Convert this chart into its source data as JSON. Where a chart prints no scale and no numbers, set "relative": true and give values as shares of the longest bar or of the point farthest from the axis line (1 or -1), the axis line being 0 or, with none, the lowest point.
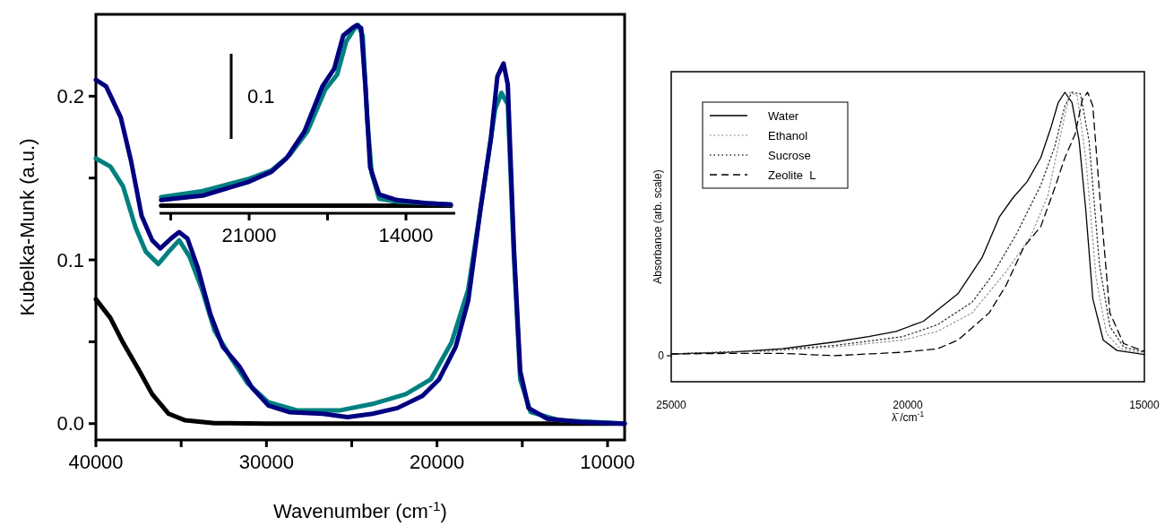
{
  "chart_data": [
    {
      "type": "line",
      "xlabel": "Wavenumber (cm$^{-1}$)",
      "ylabel": "Kubelka-Munk (a.u.)",
      "xlim": [
        40000,
        9000
      ],
      "ylim": [
        -0.01,
        0.25
      ],
      "xticks": [
        40000,
        {
          "value": 35000,
          "label": null
        },
        30000,
        {
          "value": 25000,
          "label": null
        },
        20000,
        {
          "value": 15000,
          "label": null
        },
        10000
      ],
      "yticks": [
        {
          "value": 0,
          "label": "0.0"
        },
        {
          "value": 0.05,
          "label": null
        },
        0.1,
        {
          "value": 0.15,
          "label": null
        },
        0.2
      ],
      "series": [
        {
          "color": "#000000",
          "x": [
            40000,
            39150,
            38410,
            37440,
            36700,
            35730,
            34760,
            33050,
            30000,
            20000,
            9000
          ],
          "values": [
            0.076,
            0.0645,
            0.0495,
            0.032,
            0.018,
            0.006,
            0.002,
            0.0003,
            0,
            0,
            0
          ]
        },
        {
          "color": "#008080",
          "x": [
            40000,
            39150,
            38410,
            37680,
            37070,
            36340,
            35730,
            35120,
            34510,
            33780,
            33050,
            32070,
            31100,
            29880,
            28170,
            25730,
            23780,
            21830,
            20370,
            19150,
            18170,
            17320,
            16590,
            16220,
            15850,
            15490,
            15120,
            14510,
            12800,
            9000
          ],
          "values": [
            0.162,
            0.157,
            0.145,
            0.12,
            0.105,
            0.0975,
            0.105,
            0.112,
            0.102,
            0.082,
            0.057,
            0.04,
            0.0245,
            0.013,
            0.008,
            0.008,
            0.012,
            0.018,
            0.027,
            0.0495,
            0.082,
            0.14,
            0.192,
            0.202,
            0.195,
            0.102,
            0.027,
            0.007,
            0.002,
            0
          ]
        },
        {
          "color": "#000080",
          "x": [
            40000,
            39400,
            38540,
            37930,
            37320,
            36700,
            36220,
            35600,
            35120,
            34630,
            34020,
            33290,
            32560,
            31590,
            30850,
            29880,
            28660,
            26700,
            25240,
            23780,
            22320,
            20850,
            19880,
            18900,
            18170,
            17440,
            16830,
            16460,
            16100,
            15850,
            15490,
            15120,
            14630,
            13540,
            11590,
            9000
          ],
          "values": [
            0.21,
            0.206,
            0.187,
            0.16,
            0.127,
            0.112,
            0.107,
            0.113,
            0.117,
            0.113,
            0.095,
            0.067,
            0.047,
            0.035,
            0.022,
            0.011,
            0.007,
            0.006,
            0.004,
            0.006,
            0.0095,
            0.017,
            0.027,
            0.047,
            0.075,
            0.132,
            0.175,
            0.212,
            0.22,
            0.207,
            0.107,
            0.032,
            0.0095,
            0.003,
            0.001,
            0
          ]
        }
      ]
    },
    {
      "type": "line",
      "relative": true,
      "xlim": [
        25000,
        11800
      ],
      "xticks": [
        {
          "value": 24500,
          "label": null
        },
        21000,
        {
          "value": 17500,
          "label": null
        },
        14000
      ],
      "annotations": [
        "0.1"
      ],
      "series": [
        {
          "color": "#000000",
          "x": [
            24930,
            12000
          ],
          "values": [
            0.04,
            0.04
          ]
        },
        {
          "color": "#008080",
          "x": [
            24930,
            23070,
            21070,
            20000,
            19200,
            18400,
            17600,
            17070,
            16670,
            16330,
            16130,
            15930,
            15730,
            15530,
            15200,
            14400,
            12000
          ],
          "values": [
            0.086,
            0.118,
            0.181,
            0.228,
            0.308,
            0.435,
            0.658,
            0.737,
            0.912,
            0.976,
            1.0,
            0.944,
            0.499,
            0.213,
            0.077,
            0.062,
            0.046
          ]
        },
        {
          "color": "#000080",
          "x": [
            24930,
            23070,
            21070,
            20000,
            19330,
            18530,
            17730,
            17200,
            16800,
            16400,
            16200,
            16000,
            15800,
            15600,
            15200,
            14400,
            13070,
            12000
          ],
          "values": [
            0.07,
            0.094,
            0.165,
            0.221,
            0.292,
            0.435,
            0.674,
            0.769,
            0.944,
            0.984,
            1.0,
            0.984,
            0.658,
            0.245,
            0.101,
            0.07,
            0.054,
            0.046
          ]
        }
      ]
    },
    {
      "type": "line",
      "relative": true,
      "xlabel": "λ̄ /cm$^{-1}$",
      "ylabel": "Absorbance (arb. scale)",
      "xlim": [
        25000,
        15000
      ],
      "xticks": [
        25000,
        20000,
        15000
      ],
      "legend": "top left",
      "annotations": [
        "0"
      ],
      "series": [
        {
          "name": "Water",
          "color": "#000000",
          "line_style": "solid",
          "x": [
            25000,
            23750,
            22650,
            21560,
            20830,
            20250,
            19670,
            18940,
            18430,
            18060,
            17770,
            17480,
            17190,
            16970,
            16820,
            16680,
            16530,
            16380,
            16240,
            16090,
            15870,
            15580,
            15000
          ],
          "values": [
            0.096,
            0.102,
            0.114,
            0.137,
            0.156,
            0.174,
            0.209,
            0.304,
            0.429,
            0.571,
            0.637,
            0.691,
            0.774,
            0.881,
            0.965,
            1.0,
            0.965,
            0.833,
            0.596,
            0.287,
            0.144,
            0.108,
            0.094
          ]
        },
        {
          "name": "Ethanol",
          "color": "#9a9a9a",
          "line_style": "dotted",
          "x": [
            25000,
            23020,
            21560,
            20100,
            19370,
            18640,
            17920,
            17410,
            17040,
            16750,
            16570,
            16420,
            16240,
            16020,
            15800,
            15510,
            15000
          ],
          "values": [
            0.096,
            0.105,
            0.12,
            0.144,
            0.174,
            0.238,
            0.381,
            0.5,
            0.643,
            0.869,
            1.0,
            0.988,
            0.774,
            0.358,
            0.167,
            0.114,
            0.096
          ]
        },
        {
          "name": "Sucrose",
          "color": "#333333",
          "line_style": "dotted",
          "x": [
            25000,
            23020,
            21560,
            20100,
            19370,
            18640,
            18210,
            17700,
            17190,
            16900,
            16680,
            16530,
            16350,
            16170,
            15950,
            15730,
            15440,
            15000
          ],
          "values": [
            0.096,
            0.108,
            0.125,
            0.156,
            0.197,
            0.275,
            0.369,
            0.512,
            0.679,
            0.81,
            0.953,
            1.0,
            0.994,
            0.833,
            0.405,
            0.191,
            0.12,
            0.102
          ]
        },
        {
          "name": "Zeolite  L",
          "color": "#000000",
          "line_style": "dashed",
          "x": [
            25000,
            23750,
            22650,
            21560,
            20100,
            19370,
            18940,
            18280,
            17920,
            17550,
            17190,
            16900,
            16680,
            16460,
            16310,
            16200,
            16090,
            15950,
            15730,
            15440,
            15000
          ],
          "values": [
            0.096,
            0.098,
            0.098,
            0.09,
            0.102,
            0.114,
            0.144,
            0.238,
            0.334,
            0.465,
            0.536,
            0.667,
            0.774,
            0.857,
            0.976,
            1.0,
            0.953,
            0.655,
            0.238,
            0.132,
            0.105
          ]
        }
      ]
    }
  ]
}
